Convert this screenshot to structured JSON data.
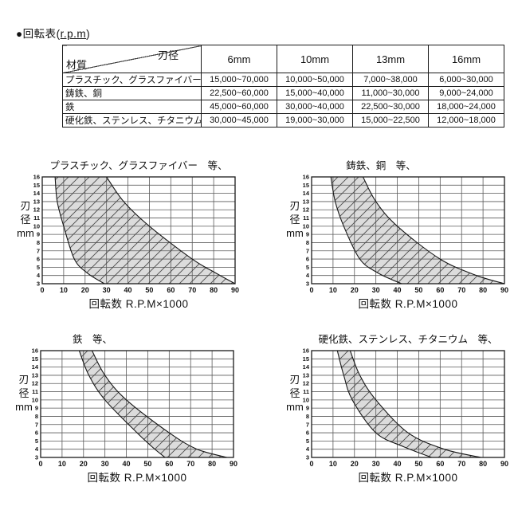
{
  "page": {
    "title_prefix": "●回転表(",
    "title_rpm": "r.p.m",
    "title_suffix": ")"
  },
  "axis": {
    "xlabel": "回転数 R.P.M×1000",
    "ylabel_lines": [
      "刃",
      "径",
      "mm"
    ]
  },
  "chart_data": [
    {
      "type": "table",
      "title": "回転表(r.p.m)",
      "corner": {
        "top_right": "刃径",
        "bottom_left": "材質"
      },
      "columns": [
        "6mm",
        "10mm",
        "13mm",
        "16mm"
      ],
      "rows": [
        {
          "material": "プラスチック、グラスファイバー",
          "values": [
            "15,000~70,000",
            "10,000~50,000",
            "7,000~38,000",
            "6,000~30,000"
          ]
        },
        {
          "material": "鋳鉄、銅",
          "values": [
            "22,500~60,000",
            "15,000~40,000",
            "11,000~30,000",
            "9,000~24,000"
          ]
        },
        {
          "material": "鉄",
          "values": [
            "45,000~60,000",
            "30,000~40,000",
            "22,500~30,000",
            "18,000~24,000"
          ]
        },
        {
          "material": "硬化鉄、ステンレス、チタニウム",
          "values": [
            "30,000~45,000",
            "19,000~30,000",
            "15,000~22,500",
            "12,000~18,000"
          ]
        }
      ]
    },
    {
      "type": "area",
      "title": "プラスチック、グラスファイバー　等、",
      "xlabel": "回転数 R.P.M×1000",
      "ylabel": "刃径 mm",
      "xlim": [
        0,
        90
      ],
      "ylim": [
        3,
        16
      ],
      "x_tick_step": 10,
      "y_tick_step": 1,
      "grid": true,
      "band": {
        "diameters_mm": [
          6,
          10,
          13,
          16
        ],
        "min_rpm_x1000": [
          15,
          10,
          7,
          6
        ],
        "max_rpm_x1000": [
          70,
          50,
          38,
          30
        ]
      },
      "band_outline": {
        "left": [
          [
            6,
            16
          ],
          [
            7,
            13
          ],
          [
            10,
            10
          ],
          [
            15,
            6
          ],
          [
            21,
            4.3
          ],
          [
            29,
            3
          ]
        ],
        "right": [
          [
            30,
            16
          ],
          [
            38,
            13
          ],
          [
            50,
            10
          ],
          [
            70,
            6
          ],
          [
            81,
            4.3
          ],
          [
            90,
            3
          ]
        ]
      }
    },
    {
      "type": "area",
      "title": "鋳鉄、銅　等、",
      "xlabel": "回転数 R.P.M×1000",
      "ylabel": "刃径 mm",
      "xlim": [
        0,
        90
      ],
      "ylim": [
        3,
        16
      ],
      "x_tick_step": 10,
      "y_tick_step": 1,
      "grid": true,
      "band": {
        "diameters_mm": [
          6,
          10,
          13,
          16
        ],
        "min_rpm_x1000": [
          22.5,
          15,
          11,
          9
        ],
        "max_rpm_x1000": [
          60,
          40,
          30,
          24
        ]
      },
      "band_outline": {
        "left": [
          [
            9,
            16
          ],
          [
            11,
            13
          ],
          [
            15,
            10
          ],
          [
            22.5,
            6
          ],
          [
            31,
            4.3
          ],
          [
            42,
            3
          ]
        ],
        "right": [
          [
            24,
            16
          ],
          [
            30,
            13
          ],
          [
            40,
            10
          ],
          [
            60,
            6
          ],
          [
            77,
            4
          ],
          [
            90,
            3
          ]
        ]
      }
    },
    {
      "type": "area",
      "title": "鉄　等、",
      "xlabel": "回転数 R.P.M×1000",
      "ylabel": "刃径 mm",
      "xlim": [
        0,
        90
      ],
      "ylim": [
        3,
        16
      ],
      "x_tick_step": 10,
      "y_tick_step": 1,
      "grid": true,
      "band": {
        "diameters_mm": [
          6,
          10,
          13,
          16
        ],
        "min_rpm_x1000": [
          45,
          30,
          22.5,
          18
        ],
        "max_rpm_x1000": [
          60,
          40,
          30,
          24
        ]
      },
      "band_outline": {
        "left": [
          [
            18,
            16
          ],
          [
            22.5,
            13
          ],
          [
            30,
            10
          ],
          [
            45,
            6
          ],
          [
            52,
            4.3
          ],
          [
            58,
            3
          ]
        ],
        "right": [
          [
            24,
            16
          ],
          [
            30,
            13
          ],
          [
            40,
            10
          ],
          [
            60,
            6
          ],
          [
            73,
            4
          ],
          [
            87,
            3
          ]
        ]
      }
    },
    {
      "type": "area",
      "title": "硬化鉄、ステンレス、チタニウム　等、",
      "xlabel": "回転数 R.P.M×1000",
      "ylabel": "刃径 mm",
      "xlim": [
        0,
        90
      ],
      "ylim": [
        3,
        16
      ],
      "x_tick_step": 10,
      "y_tick_step": 1,
      "grid": true,
      "band": {
        "diameters_mm": [
          6,
          10,
          13,
          16
        ],
        "min_rpm_x1000": [
          30,
          19,
          15,
          12
        ],
        "max_rpm_x1000": [
          45,
          30,
          22.5,
          18
        ]
      },
      "band_outline": {
        "left": [
          [
            12,
            16
          ],
          [
            15,
            13
          ],
          [
            19,
            10
          ],
          [
            30,
            6
          ],
          [
            43,
            4.3
          ],
          [
            56,
            3
          ]
        ],
        "right": [
          [
            18,
            16
          ],
          [
            22.5,
            13
          ],
          [
            30,
            10
          ],
          [
            45,
            6
          ],
          [
            62,
            4
          ],
          [
            79,
            3
          ]
        ]
      }
    }
  ],
  "colors": {
    "band_fill": "#dcdcdc",
    "hatch_line": "#4a4a4a",
    "grid_line": "#5a5a5a",
    "plot_border": "#1a1a1a",
    "text": "#111111"
  }
}
